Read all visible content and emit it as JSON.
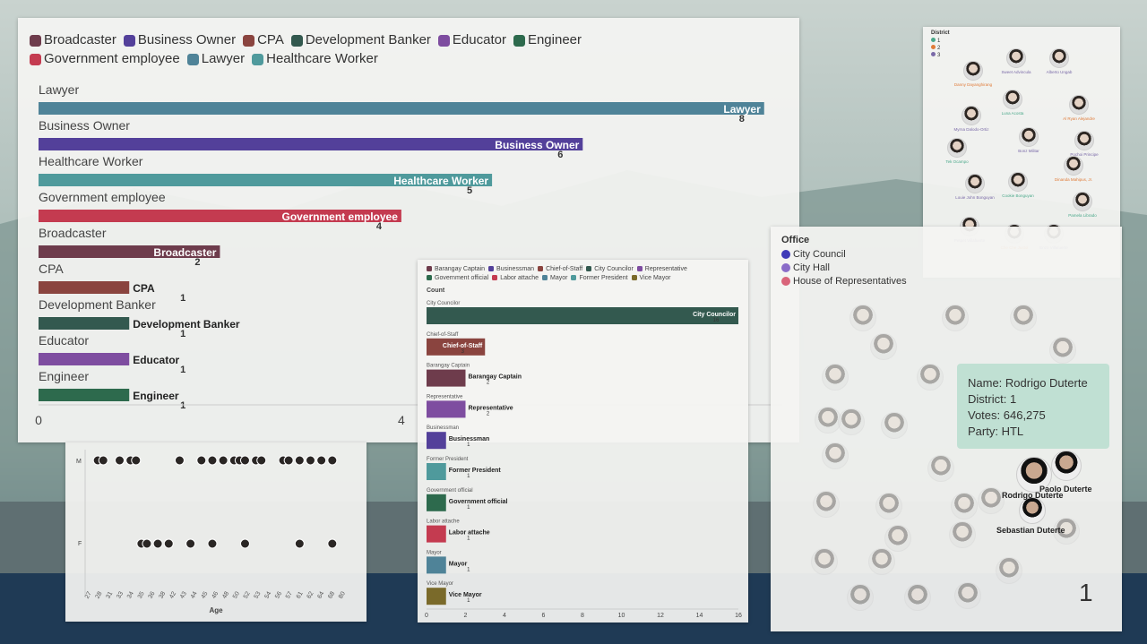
{
  "chart_data": [
    {
      "type": "bar",
      "orientation": "horizontal",
      "legend": {
        "position": "top-left",
        "entries": [
          {
            "label": "Broadcaster",
            "color": "#6e3c4c"
          },
          {
            "label": "Business Owner",
            "color": "#53409a"
          },
          {
            "label": "CPA",
            "color": "#8a443f"
          },
          {
            "label": "Development Banker",
            "color": "#33594f"
          },
          {
            "label": "Educator",
            "color": "#7e4da0"
          },
          {
            "label": "Engineer",
            "color": "#2d6a4d"
          },
          {
            "label": "Government employee",
            "color": "#c43b50"
          },
          {
            "label": "Lawyer",
            "color": "#4f8398"
          },
          {
            "label": "Healthcare Worker",
            "color": "#4f9a9c"
          }
        ]
      },
      "categories": [
        "Lawyer",
        "Business Owner",
        "Healthcare Worker",
        "Government employee",
        "Broadcaster",
        "CPA",
        "Development Banker",
        "Educator",
        "Engineer"
      ],
      "values": [
        8,
        6,
        5,
        4,
        2,
        1,
        1,
        1,
        1
      ],
      "colors": [
        "#4f8398",
        "#53409a",
        "#4f9a9c",
        "#c43b50",
        "#6e3c4c",
        "#8a443f",
        "#33594f",
        "#7e4da0",
        "#2d6a4d"
      ],
      "xticks": [
        "0",
        "4"
      ],
      "xlim": [
        0,
        8.2
      ]
    },
    {
      "type": "bar",
      "orientation": "horizontal",
      "legend": {
        "position": "top",
        "entries": [
          {
            "label": "Barangay Captain",
            "color": "#6e3c4c"
          },
          {
            "label": "Businessman",
            "color": "#53409a"
          },
          {
            "label": "Chief-of-Staff",
            "color": "#8a443f"
          },
          {
            "label": "City Councilor",
            "color": "#33594f"
          },
          {
            "label": "Representative",
            "color": "#7e4da0"
          },
          {
            "label": "Government official",
            "color": "#2d6a4d"
          },
          {
            "label": "Labor attache",
            "color": "#c43b50"
          },
          {
            "label": "Mayor",
            "color": "#4f8398"
          },
          {
            "label": "Former President",
            "color": "#4f9a9c"
          },
          {
            "label": "Vice Mayor",
            "color": "#7a6a2a"
          }
        ]
      },
      "xlabel": "Count",
      "categories": [
        "City Councilor",
        "Chief-of-Staff",
        "Barangay Captain",
        "Representative",
        "Businessman",
        "Former President",
        "Government official",
        "Labor attache",
        "Mayor",
        "Vice Mayor"
      ],
      "values": [
        16,
        3,
        2,
        2,
        1,
        1,
        1,
        1,
        1,
        1
      ],
      "colors": [
        "#33594f",
        "#8a443f",
        "#6e3c4c",
        "#7e4da0",
        "#53409a",
        "#4f9a9c",
        "#2d6a4d",
        "#c43b50",
        "#4f8398",
        "#7a6a2a"
      ],
      "xticks": [
        "0",
        "2",
        "4",
        "6",
        "8",
        "10",
        "12",
        "14",
        "16"
      ],
      "xlim": [
        0,
        16
      ]
    },
    {
      "type": "scatter",
      "xlabel": "Age",
      "y_categories": [
        "M",
        "F"
      ],
      "xticks": [
        "27",
        "28",
        "31",
        "33",
        "34",
        "35",
        "36",
        "38",
        "42",
        "43",
        "44",
        "45",
        "46",
        "48",
        "50",
        "52",
        "53",
        "54",
        "56",
        "57",
        "61",
        "62",
        "64",
        "68",
        "80"
      ],
      "points_m": [
        27,
        28,
        31,
        33,
        34,
        42,
        46,
        48,
        50,
        52,
        53,
        54,
        56,
        57,
        61,
        62,
        64,
        66,
        68,
        70
      ],
      "points_f": [
        35,
        36,
        38,
        40,
        44,
        48,
        54,
        64,
        70
      ]
    }
  ],
  "district_legend": {
    "title": "District",
    "items": [
      {
        "label": "1",
        "color": "#4aa88a"
      },
      {
        "label": "2",
        "color": "#e07b39"
      },
      {
        "label": "3",
        "color": "#7a6aa8"
      }
    ]
  },
  "district_people": [
    {
      "name": "Sweet Advincula",
      "color": "#7a6aa8"
    },
    {
      "name": "Alberto Ungab",
      "color": "#7a6aa8"
    },
    {
      "name": "Danny Dayanghirang",
      "color": "#e07b39"
    },
    {
      "name": "Luna Acosta",
      "color": "#4aa88a"
    },
    {
      "name": "Al Ryan Alejandre",
      "color": "#e07b39"
    },
    {
      "name": "Myrna Dalodo-Ortiz",
      "color": "#7a6aa8"
    },
    {
      "name": "Bonz Militar",
      "color": "#7a6aa8"
    },
    {
      "name": "Pochoi Principe",
      "color": "#7a6aa8"
    },
    {
      "name": "Tek Ocampo",
      "color": "#4aa88a"
    },
    {
      "name": "Dinanda Mahipus, Jr.",
      "color": "#e07b39"
    },
    {
      "name": "Louie John Bonguyan",
      "color": "#7a6aa8"
    },
    {
      "name": "Cookie Bonguyan",
      "color": "#4aa88a"
    },
    {
      "name": "Pamela Librado",
      "color": "#4aa88a"
    },
    {
      "name": "Petpet Villafuerte",
      "color": "#7a6aa8"
    },
    {
      "name": "Che Che Justol",
      "color": "#e07b39"
    },
    {
      "name": "Enzo Villafuerte",
      "color": "#7a6aa8"
    }
  ],
  "office_legend": {
    "title": "Office",
    "items": [
      {
        "label": "City Council",
        "color": "#3f3bb8"
      },
      {
        "label": "City Hall",
        "color": "#8a6cc8"
      },
      {
        "label": "House of Representatives",
        "color": "#d9647a"
      }
    ]
  },
  "tooltip": {
    "name": "Name: Rodrigo Duterte",
    "district": "District: 1",
    "votes": "Votes: 646,275",
    "party": "Party: HTL"
  },
  "labels": {
    "paolo": "Paolo Duterte",
    "rodrigo": "Rodrigo Duterte",
    "sebastian": "Sebastian Duterte"
  },
  "page_number": "1"
}
